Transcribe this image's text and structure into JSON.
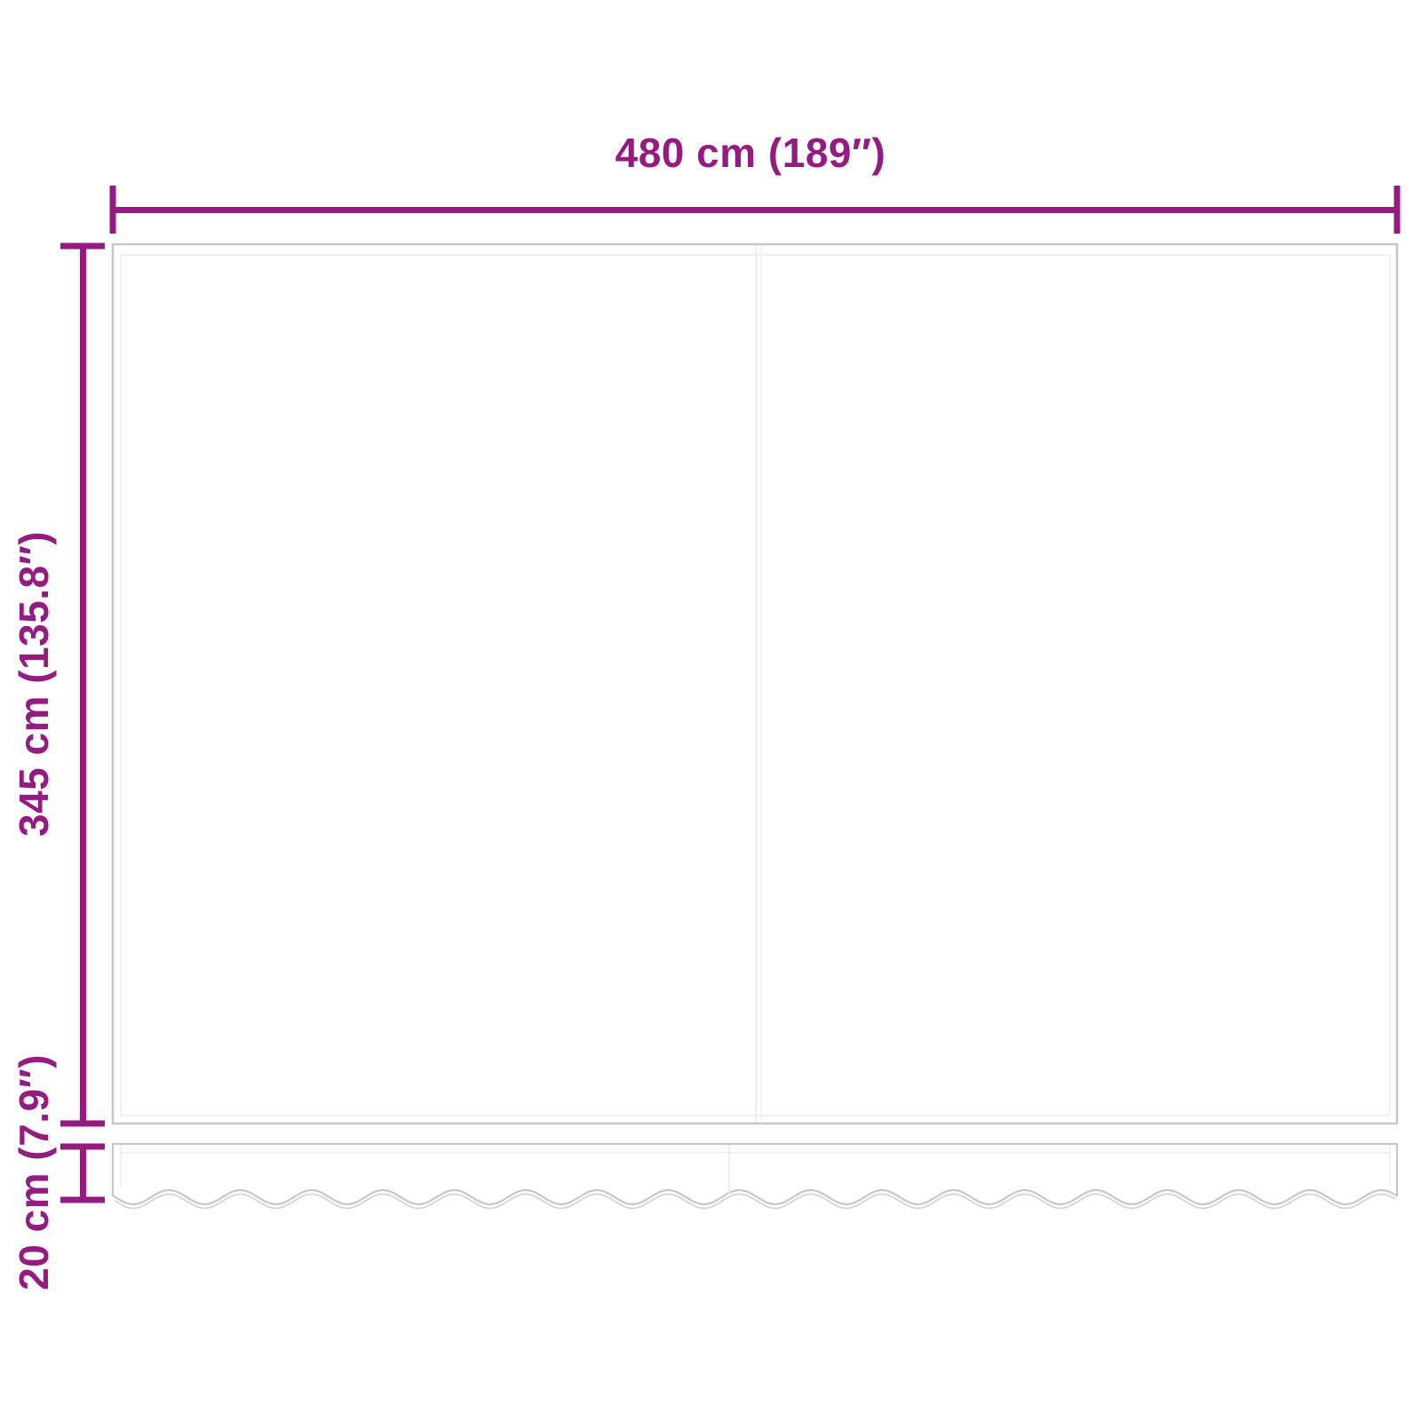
{
  "diagram": {
    "width_dimension": {
      "label": "480 cm (189″)",
      "value_cm": 480,
      "value_inch": 189
    },
    "height_dimension": {
      "label": "345 cm (135.8″)",
      "value_cm": 345,
      "value_inch": 135.8
    },
    "valance_dimension": {
      "label": "20 cm (7.9″)",
      "value_cm": 20,
      "value_inch": 7.9
    },
    "parts": {
      "fabric_panel": "awning-fabric-panel",
      "valance": "scalloped-valance"
    }
  },
  "colors": {
    "dimension_accent": "#951b81",
    "panel_outline": "#c7c7c7",
    "hem_line": "#ececec"
  }
}
